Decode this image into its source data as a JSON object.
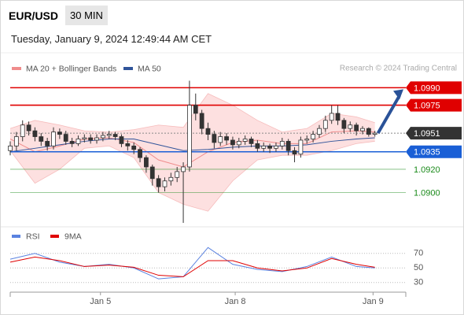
{
  "header": {
    "symbol": "EUR/USD",
    "timeframe": "30 MIN",
    "timestamp": "Tuesday, January 9, 2024 12:49:44 AM CET",
    "credit": "Research © 2024 Trading Central"
  },
  "chart_data": [
    {
      "type": "candlestick",
      "xlim": [
        0,
        64
      ],
      "ylim": [
        1.0874,
        1.102
      ],
      "up_color": "#ffffff",
      "down_color": "#333333",
      "wick_color": "#333333",
      "series": [
        {
          "open": [
            1.0936,
            1.094,
            1.0948,
            1.0958,
            1.0953,
            1.0948,
            1.0944,
            1.094,
            1.0952,
            1.095,
            1.0944,
            1.0942,
            1.0946,
            1.0947,
            1.0945,
            1.0947,
            1.0949,
            1.095,
            1.0948,
            1.0942,
            1.094,
            1.0937,
            1.093,
            1.0922,
            1.0912,
            1.0905,
            1.091,
            1.0913,
            1.0918,
            1.0922,
            1.0975,
            1.0968,
            1.0955,
            1.095,
            1.0943,
            1.0948,
            1.0945,
            1.0941,
            1.0944,
            1.0946,
            1.0942,
            1.0938,
            1.094,
            1.0938,
            1.094,
            1.0944,
            1.0936,
            1.0933,
            1.0945,
            1.0946,
            1.095,
            1.0955,
            1.0962,
            1.0968,
            1.0962,
            1.0955,
            1.0958,
            1.0953,
            1.0955,
            1.095
          ],
          "high": [
            1.0944,
            1.0952,
            1.0962,
            1.0961,
            1.0956,
            1.0951,
            1.0947,
            1.0956,
            1.0955,
            1.0953,
            1.0947,
            1.0949,
            1.095,
            1.095,
            1.095,
            1.0952,
            1.0953,
            1.0952,
            1.095,
            1.0945,
            1.0943,
            1.0939,
            1.0932,
            1.0924,
            1.0915,
            1.0913,
            1.0917,
            1.0922,
            1.0926,
            1.0996,
            1.0985,
            1.0971,
            1.096,
            1.0953,
            1.0952,
            1.0951,
            1.0948,
            1.0947,
            1.0949,
            1.0948,
            1.0945,
            1.0943,
            1.0942,
            1.0943,
            1.0947,
            1.0946,
            1.0939,
            1.0948,
            1.0949,
            1.0953,
            1.0958,
            1.0966,
            1.0975,
            1.0975,
            1.0964,
            1.0961,
            1.096,
            1.0957,
            1.0956,
            1.0953
          ],
          "low": [
            1.0932,
            1.0936,
            1.0944,
            1.0949,
            1.0944,
            1.094,
            1.0936,
            1.0937,
            1.0946,
            1.0941,
            1.0939,
            1.094,
            1.0943,
            1.0942,
            1.0942,
            1.0944,
            1.0946,
            1.0945,
            1.0939,
            1.0936,
            1.0933,
            1.0926,
            1.0917,
            1.0906,
            1.09,
            1.0901,
            1.0906,
            1.0909,
            1.0874,
            1.0918,
            1.0962,
            1.095,
            1.0945,
            1.0938,
            1.094,
            1.0941,
            1.0937,
            1.0938,
            1.0941,
            1.0939,
            1.0935,
            1.0935,
            1.0934,
            1.0935,
            1.0937,
            1.0932,
            1.0926,
            1.093,
            1.0942,
            1.0943,
            1.0947,
            1.0952,
            1.0959,
            1.0958,
            1.0951,
            1.0952,
            1.0949,
            1.095,
            1.0948,
            1.0948
          ],
          "close": [
            1.094,
            1.0948,
            1.0958,
            1.0953,
            1.0948,
            1.0944,
            1.094,
            1.0952,
            1.095,
            1.0944,
            1.0942,
            1.0946,
            1.0947,
            1.0945,
            1.0947,
            1.0949,
            1.095,
            1.0948,
            1.0942,
            1.094,
            1.0937,
            1.093,
            1.0922,
            1.0912,
            1.0905,
            1.091,
            1.0913,
            1.0918,
            1.0922,
            1.0975,
            1.0968,
            1.0955,
            1.095,
            1.0943,
            1.0948,
            1.0945,
            1.0941,
            1.0944,
            1.0946,
            1.0942,
            1.0938,
            1.094,
            1.0938,
            1.094,
            1.0944,
            1.0936,
            1.0933,
            1.0945,
            1.0946,
            1.095,
            1.0955,
            1.0962,
            1.0968,
            1.0962,
            1.0955,
            1.0958,
            1.0953,
            1.0955,
            1.095,
            1.0951
          ]
        }
      ],
      "overlays": [
        {
          "name": "MA 20 + Bollinger Bands",
          "color": "#f08c8c",
          "band_color": "#fde0e0",
          "x": [
            0,
            4,
            8,
            12,
            16,
            20,
            24,
            28,
            32,
            36,
            40,
            44,
            48,
            52,
            56,
            59
          ],
          "upper": [
            1.0955,
            1.0962,
            1.0958,
            1.0953,
            1.0952,
            1.0954,
            1.0958,
            1.0956,
            1.0985,
            1.0975,
            1.0962,
            1.0952,
            1.0955,
            1.0968,
            1.0965,
            1.096
          ],
          "middle": [
            1.0946,
            1.0935,
            1.094,
            1.0946,
            1.0947,
            1.0943,
            1.0928,
            1.0922,
            1.0935,
            1.0943,
            1.0945,
            1.0942,
            1.0942,
            1.0952,
            1.0953,
            1.0952
          ],
          "lower": [
            1.0936,
            1.0908,
            1.092,
            1.0938,
            1.094,
            1.093,
            1.09,
            1.089,
            1.0884,
            1.091,
            1.0928,
            1.0932,
            1.0932,
            1.0936,
            1.0942,
            1.0944
          ]
        },
        {
          "name": "MA 50",
          "color": "#30549a",
          "x": [
            0,
            4,
            8,
            12,
            16,
            20,
            24,
            28,
            32,
            36,
            40,
            44,
            48,
            52,
            56,
            59
          ],
          "values": [
            1.0935,
            1.0938,
            1.0941,
            1.0944,
            1.0946,
            1.0946,
            1.0941,
            1.0936,
            1.0937,
            1.0939,
            1.094,
            1.094,
            1.0941,
            1.0944,
            1.0946,
            1.0947
          ]
        }
      ],
      "levels": [
        {
          "value": 1.099,
          "label": "1.0990",
          "color": "#e00000",
          "style": "box"
        },
        {
          "value": 1.0975,
          "label": "1.0975",
          "color": "#e00000",
          "style": "box"
        },
        {
          "value": 1.0951,
          "label": "1.0951",
          "color": "#333333",
          "style": "current"
        },
        {
          "value": 1.0935,
          "label": "1.0935",
          "color": "#1a5fd6",
          "style": "box"
        },
        {
          "value": 1.092,
          "label": "1.0920",
          "color": "#1a8a1a",
          "style": "text"
        },
        {
          "value": 1.09,
          "label": "1.0900",
          "color": "#1a8a1a",
          "style": "text"
        }
      ]
    },
    {
      "type": "line",
      "xlim": [
        0,
        64
      ],
      "ylim": [
        19,
        87
      ],
      "yticks": [
        70,
        50,
        30
      ],
      "xticks": [
        {
          "value": 14.6,
          "label": "Jan 5"
        },
        {
          "value": 36.4,
          "label": "Jan 8"
        },
        {
          "value": 58.7,
          "label": "Jan 9"
        }
      ],
      "series": [
        {
          "name": "RSI",
          "color": "#5a82e0",
          "x": [
            0,
            4,
            8,
            12,
            16,
            20,
            24,
            28,
            32,
            36,
            40,
            44,
            48,
            52,
            56,
            59
          ],
          "values": [
            62,
            70,
            58,
            52,
            55,
            50,
            35,
            38,
            78,
            55,
            48,
            45,
            52,
            65,
            52,
            50
          ]
        },
        {
          "name": "9MA",
          "color": "#e00000",
          "x": [
            0,
            4,
            8,
            12,
            16,
            20,
            24,
            28,
            32,
            36,
            40,
            44,
            48,
            52,
            56,
            59
          ],
          "values": [
            58,
            65,
            60,
            52,
            54,
            51,
            40,
            38,
            60,
            60,
            50,
            46,
            50,
            63,
            55,
            51
          ]
        }
      ]
    }
  ]
}
